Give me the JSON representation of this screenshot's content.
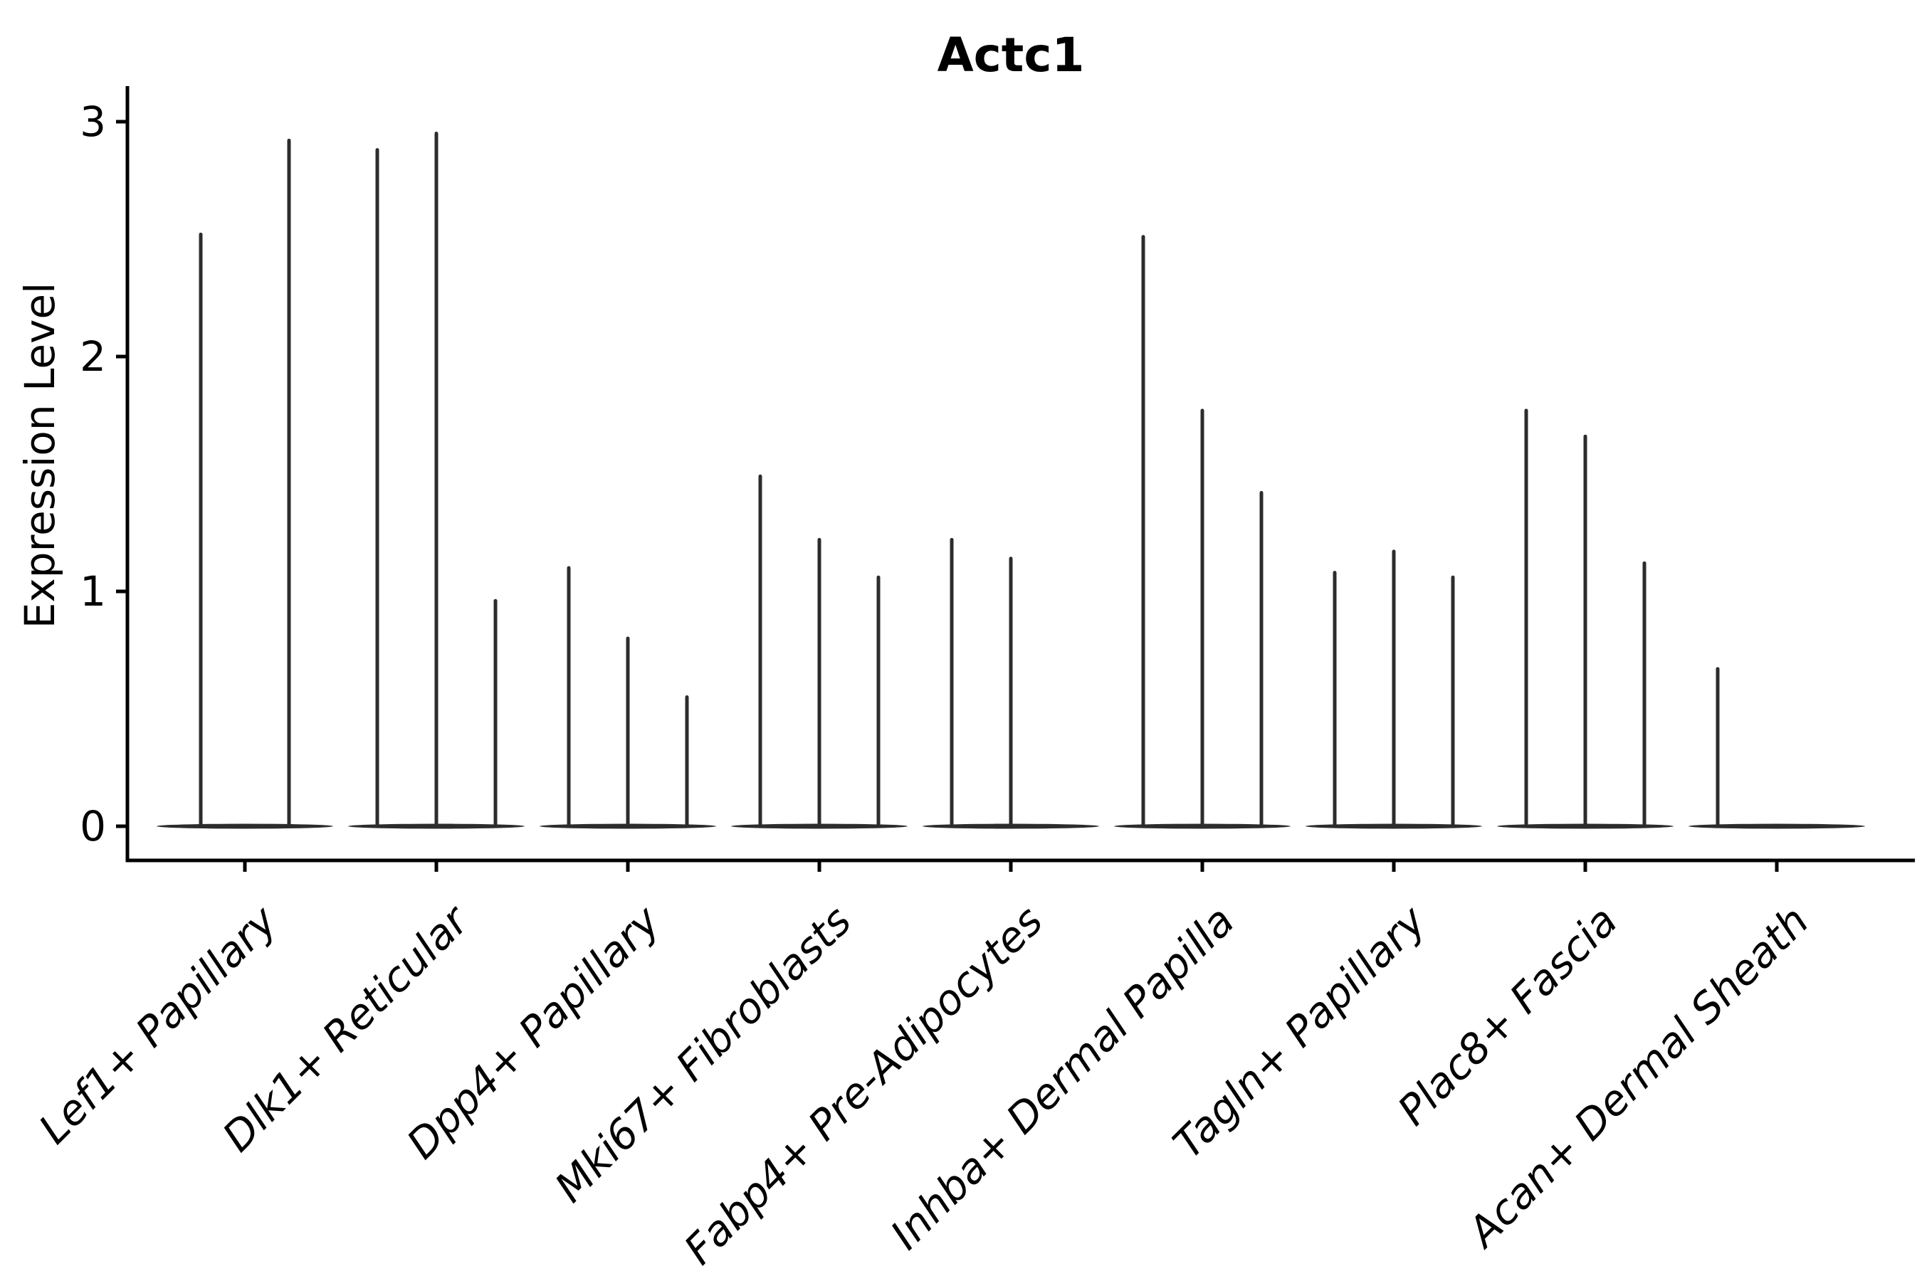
{
  "title": "Actc1",
  "y_axis": {
    "label": "Expression Level",
    "tick_labels": [
      "0",
      "1",
      "2",
      "3"
    ]
  },
  "x_axis": {
    "categories": [
      "Lef1+ Papillary",
      "Dlk1+ Reticular",
      "Dpp4+ Papillary",
      "Mki67+ Fibroblasts",
      "Fabp4+ Pre-Adipocytes",
      "Inhba+ Dermal Papilla",
      "Tagln+ Papillary",
      "Plac8+ Fascia",
      "Acan+ Dermal Sheath"
    ]
  },
  "chart_data": {
    "type": "violin",
    "title": "Actc1",
    "xlabel": "",
    "ylabel": "Expression Level",
    "yticks": [
      0,
      1,
      2,
      3
    ],
    "ylim": [
      0,
      3.15
    ],
    "grid": false,
    "legend_position": "none",
    "colors": {
      "violin": "#2c2c2c",
      "axis": "#000000",
      "background": "#ffffff"
    },
    "categories": [
      "Lef1+ Papillary",
      "Dlk1+ Reticular",
      "Dpp4+ Papillary",
      "Mki67+ Fibroblasts",
      "Fabp4+ Pre-Adipocytes",
      "Inhba+ Dermal Papilla",
      "Tagln+ Papillary",
      "Plac8+ Fascia",
      "Acan+ Dermal Sheath"
    ],
    "groups": [
      {
        "label": "Lef1+ Papillary",
        "violins": [
          {
            "slot_dx": -62,
            "max_expression": 2.52
          },
          {
            "slot_dx": 62,
            "max_expression": 2.92
          }
        ]
      },
      {
        "label": "Dlk1+ Reticular",
        "violins": [
          {
            "slot_dx": -83,
            "max_expression": 2.88
          },
          {
            "slot_dx": 0,
            "max_expression": 2.95
          },
          {
            "slot_dx": 83,
            "max_expression": 0.96
          }
        ]
      },
      {
        "label": "Dpp4+ Papillary",
        "violins": [
          {
            "slot_dx": -83,
            "max_expression": 1.1
          },
          {
            "slot_dx": 0,
            "max_expression": 0.8
          },
          {
            "slot_dx": 83,
            "max_expression": 0.55
          }
        ]
      },
      {
        "label": "Mki67+ Fibroblasts",
        "violins": [
          {
            "slot_dx": -83,
            "max_expression": 1.49
          },
          {
            "slot_dx": 0,
            "max_expression": 1.22
          },
          {
            "slot_dx": 83,
            "max_expression": 1.06
          }
        ]
      },
      {
        "label": "Fabp4+ Pre-Adipocytes",
        "violins": [
          {
            "slot_dx": -83,
            "max_expression": 1.22
          },
          {
            "slot_dx": 0,
            "max_expression": 1.14
          }
        ]
      },
      {
        "label": "Inhba+ Dermal Papilla",
        "violins": [
          {
            "slot_dx": -83,
            "max_expression": 2.51
          },
          {
            "slot_dx": 0,
            "max_expression": 1.77
          },
          {
            "slot_dx": 83,
            "max_expression": 1.42
          }
        ]
      },
      {
        "label": "Tagln+ Papillary",
        "violins": [
          {
            "slot_dx": -83,
            "max_expression": 1.08
          },
          {
            "slot_dx": 0,
            "max_expression": 1.17
          },
          {
            "slot_dx": 83,
            "max_expression": 1.06
          }
        ]
      },
      {
        "label": "Plac8+ Fascia",
        "violins": [
          {
            "slot_dx": -83,
            "max_expression": 1.77
          },
          {
            "slot_dx": 0,
            "max_expression": 1.66
          },
          {
            "slot_dx": 83,
            "max_expression": 1.12
          }
        ]
      },
      {
        "label": "Acan+ Dermal Sheath",
        "violins": [
          {
            "slot_dx": -83,
            "max_expression": 0.67
          }
        ]
      }
    ]
  }
}
